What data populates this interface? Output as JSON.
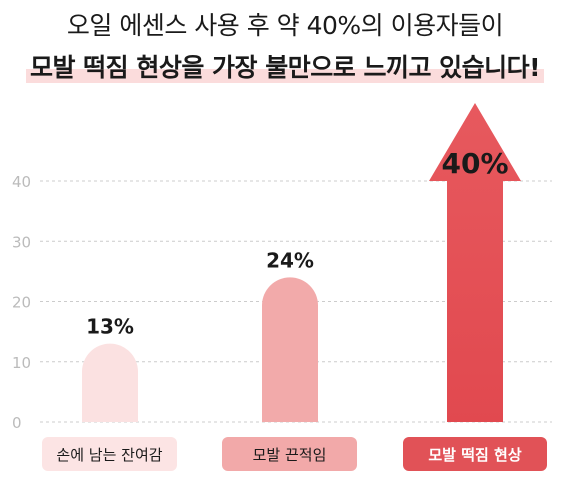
{
  "headline": {
    "line1": "오일 에센스 사용 후 약 40%의 이용자들이",
    "line2": "모발 떡짐 현상을 가장 불만으로 느끼고 있습니다!"
  },
  "chart_data": {
    "type": "bar",
    "title": "",
    "xlabel": "",
    "ylabel": "",
    "categories": [
      "손에 남는 잔여감",
      "모발 끈적임",
      "모발 떡짐 현상"
    ],
    "values": [
      13,
      24,
      40
    ],
    "value_labels": [
      "13%",
      "24%",
      "40%"
    ],
    "y_ticks": [
      "0",
      "10",
      "20",
      "30",
      "40"
    ],
    "ylim": [
      0,
      40
    ],
    "grid": true,
    "legend": "none",
    "colors": {
      "bar1": "#fbe1e1",
      "bar2": "#f2aaaa",
      "bar3": "#e3585c",
      "label1_bg": "#fce4e4",
      "label2_bg": "#f2a9a9",
      "label3_bg": "#e15257",
      "highlight": "#fbdcdc",
      "text": "#1a1a1a",
      "grid": "#cccccc",
      "tick": "#bbbbbb"
    }
  }
}
